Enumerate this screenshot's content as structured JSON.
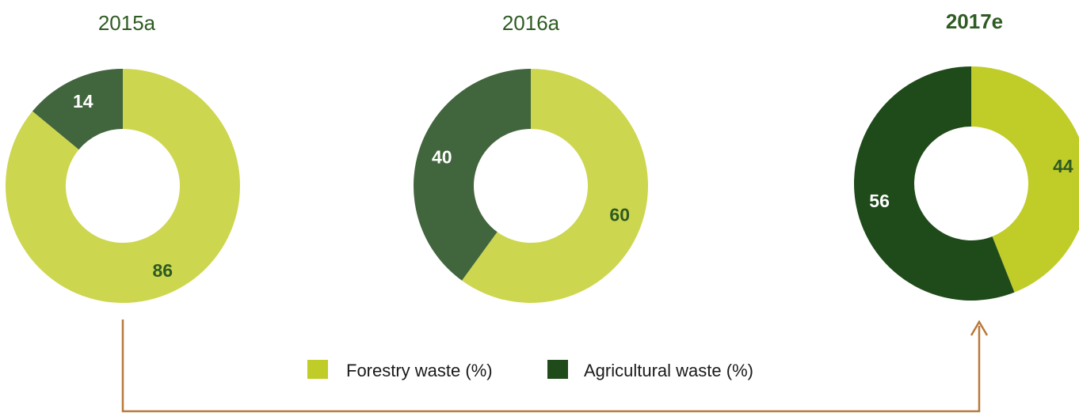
{
  "chart_data": [
    {
      "type": "pie",
      "title": "2015a",
      "title_bold": false,
      "labels": [
        "Forestry waste (%)",
        "Agricultural waste (%)"
      ],
      "values": [
        86,
        14
      ],
      "colors": [
        "#cdd64f",
        "#41653c"
      ]
    },
    {
      "type": "pie",
      "title": "2016a",
      "title_bold": false,
      "labels": [
        "Forestry waste (%)",
        "Agricultural waste (%)"
      ],
      "values": [
        60,
        40
      ],
      "colors": [
        "#cdd64f",
        "#41653c"
      ]
    },
    {
      "type": "pie",
      "title": "2017e",
      "title_bold": true,
      "labels": [
        "Forestry waste (%)",
        "Agricultural waste (%)"
      ],
      "values": [
        44,
        56
      ],
      "colors": [
        "#c0cc28",
        "#1f4a1a"
      ]
    }
  ],
  "legend": {
    "placement": "bottom-center",
    "items": [
      {
        "label": "Forestry waste (%)",
        "color": "#c0cc28"
      },
      {
        "label": "Agricultural waste (%)",
        "color": "#1f4a1a"
      }
    ]
  },
  "connector": {
    "color": "#b8793a",
    "from": "2015a",
    "to": "2017e"
  },
  "colors": {
    "title": "#2e5b22",
    "label_on_light": "#2e5b22",
    "label_on_dark": "#ffffff",
    "legend_text": "#1a1a1a"
  }
}
